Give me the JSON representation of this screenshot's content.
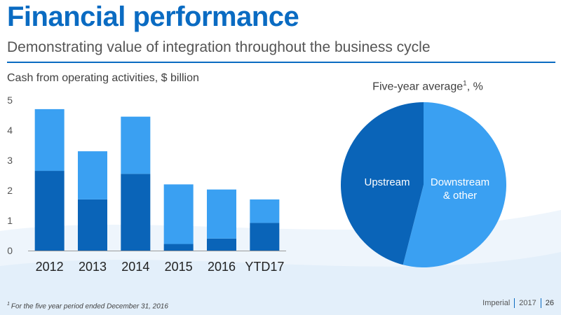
{
  "slide": {
    "title": "Financial performance",
    "subtitle": "Demonstrating value of integration throughout the business cycle",
    "footnote_marker": "1",
    "footnote": "For the five year period ended December 31, 2016",
    "footer_company": "Imperial",
    "footer_year": "2017",
    "page_number": "26"
  },
  "colors": {
    "title": "#0a6bc2",
    "upstream": "#0a64b8",
    "downstream": "#3aa0f2",
    "background_swoosh": "#e8f2fb"
  },
  "chart_data": [
    {
      "type": "bar",
      "stacked": true,
      "title": "Cash from operating activities, $ billion",
      "categories": [
        "2012",
        "2013",
        "2014",
        "2015",
        "2016",
        "YTD17"
      ],
      "series": [
        {
          "values": [
            2.65,
            1.7,
            2.55,
            0.22,
            0.4,
            0.92
          ]
        },
        {
          "values": [
            2.05,
            1.6,
            1.9,
            1.98,
            1.63,
            0.78
          ]
        }
      ],
      "ylim": [
        0,
        5
      ],
      "yticks": [
        "0",
        "1",
        "2",
        "3",
        "4",
        "5"
      ],
      "grid": false
    },
    {
      "type": "pie",
      "title": "Five-year average",
      "title_marker": "1",
      "title_suffix": ", %",
      "slices": [
        {
          "name": "Upstream",
          "value": 46
        },
        {
          "name": "Downstream & other",
          "value": 54
        }
      ]
    }
  ]
}
